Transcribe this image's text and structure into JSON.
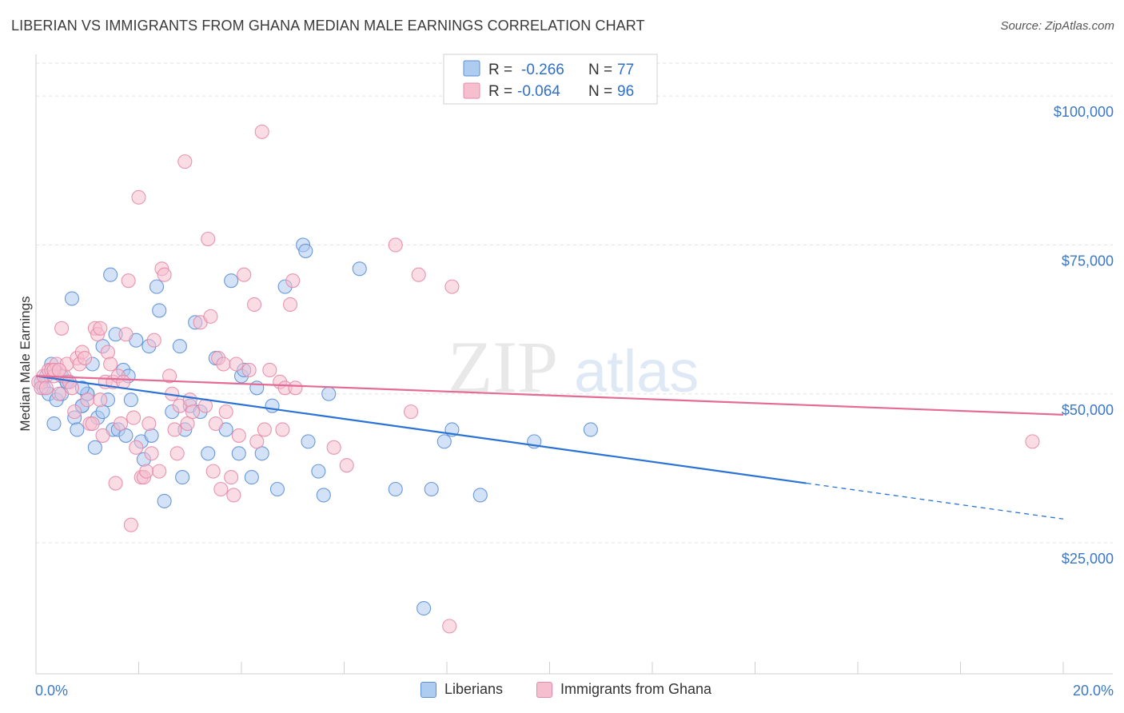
{
  "title": "LIBERIAN VS IMMIGRANTS FROM GHANA MEDIAN MALE EARNINGS CORRELATION CHART",
  "source": "Source: ZipAtlas.com",
  "watermark": {
    "zip": "ZIP",
    "atlas": "atlas"
  },
  "legend": {
    "r_label": "R =",
    "n_label": "N =",
    "rows": [
      {
        "r": "-0.266",
        "n": "77"
      },
      {
        "r": "-0.064",
        "n": "96"
      }
    ]
  },
  "bottom_legend": [
    "Liberians",
    "Immigrants from Ghana"
  ],
  "chart_data": {
    "type": "scatter",
    "title": "LIBERIAN VS IMMIGRANTS FROM GHANA MEDIAN MALE EARNINGS CORRELATION CHART",
    "xlabel": "",
    "ylabel": "Median Male Earnings",
    "xlim": [
      0,
      20
    ],
    "ylim": [
      3000,
      107000
    ],
    "x_tick_labels": [
      "0.0%",
      "20.0%"
    ],
    "y_ticks": [
      {
        "value": 100000,
        "label": "$100,000"
      },
      {
        "value": 75000,
        "label": "$75,000"
      },
      {
        "value": 50000,
        "label": "$50,000"
      },
      {
        "value": 25000,
        "label": "$25,000"
      }
    ],
    "colors": {
      "blue_fill": "#aecbf0",
      "blue_stroke": "#5b8fd6",
      "blue_line": "#2a72d4",
      "pink_fill": "#f6bfd0",
      "pink_stroke": "#e68aa8",
      "pink_line": "#e36b96"
    },
    "series": [
      {
        "name": "Liberians",
        "r": -0.266,
        "n": 77,
        "trend": {
          "x_start": 0,
          "y_start": 53000,
          "x_solid_end": 15,
          "y_solid_end": 35000,
          "x_end": 20,
          "y_end": 29000
        },
        "points": [
          [
            0.1,
            52000
          ],
          [
            0.15,
            51000
          ],
          [
            0.2,
            53000
          ],
          [
            0.25,
            50000
          ],
          [
            0.3,
            55000
          ],
          [
            0.35,
            45000
          ],
          [
            0.4,
            49000
          ],
          [
            0.5,
            50000
          ],
          [
            0.5,
            53000
          ],
          [
            0.6,
            52000
          ],
          [
            0.65,
            52000
          ],
          [
            0.7,
            66000
          ],
          [
            0.75,
            46000
          ],
          [
            0.8,
            44000
          ],
          [
            0.9,
            48000
          ],
          [
            0.9,
            48000
          ],
          [
            1.0,
            50000
          ],
          [
            1.0,
            50000
          ],
          [
            1.1,
            55000
          ],
          [
            1.15,
            41000
          ],
          [
            1.2,
            46000
          ],
          [
            1.3,
            58000
          ],
          [
            1.4,
            49000
          ],
          [
            1.45,
            70000
          ],
          [
            1.5,
            44000
          ],
          [
            1.55,
            60000
          ],
          [
            1.6,
            44000
          ],
          [
            1.7,
            54000
          ],
          [
            1.75,
            43000
          ],
          [
            1.8,
            53000
          ],
          [
            1.85,
            49000
          ],
          [
            1.95,
            59000
          ],
          [
            2.05,
            42000
          ],
          [
            2.1,
            39000
          ],
          [
            2.2,
            58000
          ],
          [
            2.25,
            43000
          ],
          [
            2.35,
            68000
          ],
          [
            2.4,
            64000
          ],
          [
            2.5,
            32000
          ],
          [
            2.65,
            47000
          ],
          [
            2.8,
            58000
          ],
          [
            2.85,
            36000
          ],
          [
            2.9,
            44000
          ],
          [
            3.0,
            48000
          ],
          [
            3.1,
            62000
          ],
          [
            3.2,
            47000
          ],
          [
            3.35,
            40000
          ],
          [
            3.5,
            56000
          ],
          [
            3.7,
            44000
          ],
          [
            3.8,
            69000
          ],
          [
            3.95,
            40000
          ],
          [
            4.0,
            53000
          ],
          [
            4.05,
            54000
          ],
          [
            4.2,
            36000
          ],
          [
            4.3,
            51000
          ],
          [
            4.4,
            40000
          ],
          [
            4.6,
            48000
          ],
          [
            4.7,
            34000
          ],
          [
            4.85,
            68000
          ],
          [
            5.2,
            75000
          ],
          [
            5.25,
            74000
          ],
          [
            5.3,
            42000
          ],
          [
            5.5,
            37000
          ],
          [
            5.6,
            33000
          ],
          [
            5.7,
            50000
          ],
          [
            6.3,
            71000
          ],
          [
            7.0,
            34000
          ],
          [
            7.55,
            14000
          ],
          [
            7.7,
            34000
          ],
          [
            7.95,
            42000
          ],
          [
            8.1,
            44000
          ],
          [
            8.65,
            33000
          ],
          [
            9.7,
            42000
          ],
          [
            10.8,
            44000
          ],
          [
            0.6,
            52000
          ],
          [
            0.9,
            51000
          ],
          [
            1.3,
            47000
          ]
        ]
      },
      {
        "name": "Immigrants from Ghana",
        "r": -0.064,
        "n": 96,
        "trend": {
          "x_start": 0,
          "y_start": 53000,
          "x_end": 20,
          "y_end": 46500
        },
        "points": [
          [
            0.05,
            52000
          ],
          [
            0.1,
            51000
          ],
          [
            0.15,
            53000
          ],
          [
            0.2,
            51000
          ],
          [
            0.25,
            54000
          ],
          [
            0.3,
            54000
          ],
          [
            0.35,
            53000
          ],
          [
            0.4,
            55000
          ],
          [
            0.45,
            50000
          ],
          [
            0.5,
            61000
          ],
          [
            0.55,
            53000
          ],
          [
            0.6,
            55000
          ],
          [
            0.65,
            52000
          ],
          [
            0.7,
            51000
          ],
          [
            0.75,
            47000
          ],
          [
            0.8,
            56000
          ],
          [
            0.85,
            55000
          ],
          [
            0.9,
            57000
          ],
          [
            0.95,
            56000
          ],
          [
            1.0,
            49000
          ],
          [
            1.05,
            45000
          ],
          [
            1.1,
            45000
          ],
          [
            1.15,
            61000
          ],
          [
            1.2,
            60000
          ],
          [
            1.25,
            61000
          ],
          [
            1.3,
            43000
          ],
          [
            1.35,
            52000
          ],
          [
            1.4,
            57000
          ],
          [
            1.45,
            55000
          ],
          [
            1.5,
            52000
          ],
          [
            1.55,
            35000
          ],
          [
            1.6,
            53000
          ],
          [
            1.65,
            45000
          ],
          [
            1.7,
            52000
          ],
          [
            1.75,
            60000
          ],
          [
            1.8,
            69000
          ],
          [
            1.85,
            28000
          ],
          [
            1.9,
            46000
          ],
          [
            1.95,
            41000
          ],
          [
            2.0,
            83000
          ],
          [
            2.05,
            36000
          ],
          [
            2.1,
            36000
          ],
          [
            2.15,
            37000
          ],
          [
            2.2,
            45000
          ],
          [
            2.25,
            40000
          ],
          [
            2.3,
            59000
          ],
          [
            2.4,
            37000
          ],
          [
            2.45,
            71000
          ],
          [
            2.5,
            70000
          ],
          [
            2.6,
            53000
          ],
          [
            2.65,
            50000
          ],
          [
            2.75,
            40000
          ],
          [
            2.8,
            48000
          ],
          [
            2.9,
            89000
          ],
          [
            2.95,
            45000
          ],
          [
            3.0,
            49000
          ],
          [
            3.05,
            47000
          ],
          [
            3.2,
            62000
          ],
          [
            3.3,
            48000
          ],
          [
            3.35,
            76000
          ],
          [
            3.4,
            63000
          ],
          [
            3.45,
            37000
          ],
          [
            3.5,
            45000
          ],
          [
            3.55,
            56000
          ],
          [
            3.6,
            34000
          ],
          [
            3.65,
            55000
          ],
          [
            3.7,
            47000
          ],
          [
            3.8,
            36000
          ],
          [
            3.85,
            33000
          ],
          [
            3.9,
            55000
          ],
          [
            3.95,
            43000
          ],
          [
            4.05,
            70000
          ],
          [
            4.15,
            54000
          ],
          [
            4.25,
            65000
          ],
          [
            4.3,
            42000
          ],
          [
            4.4,
            94000
          ],
          [
            4.45,
            44000
          ],
          [
            4.55,
            54000
          ],
          [
            4.75,
            52000
          ],
          [
            4.8,
            44000
          ],
          [
            4.85,
            51000
          ],
          [
            4.95,
            65000
          ],
          [
            5.0,
            69000
          ],
          [
            5.05,
            51000
          ],
          [
            5.8,
            41000
          ],
          [
            6.05,
            38000
          ],
          [
            7.0,
            75000
          ],
          [
            7.3,
            47000
          ],
          [
            7.45,
            70000
          ],
          [
            8.05,
            11000
          ],
          [
            8.1,
            68000
          ],
          [
            19.4,
            42000
          ],
          [
            1.25,
            49000
          ],
          [
            0.35,
            54000
          ],
          [
            0.45,
            54000
          ],
          [
            2.7,
            44000
          ]
        ]
      }
    ]
  }
}
